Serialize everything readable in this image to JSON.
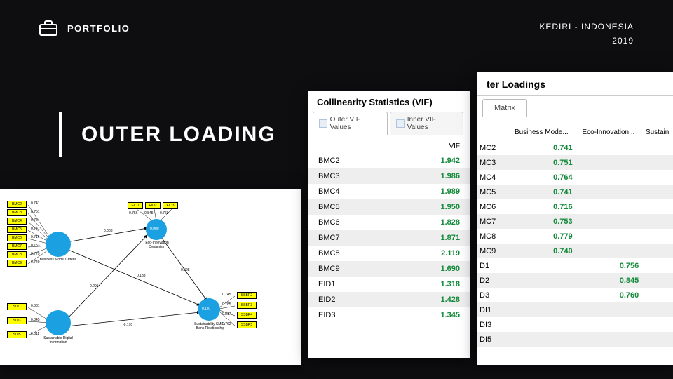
{
  "header": {
    "brand": "PORTFOLIO",
    "location": "KEDIRI - INDONESIA",
    "year": "2019"
  },
  "title": "OUTER LOADING",
  "colors": {
    "page_bg": "#0e0e11",
    "panel_bg": "#ffffff",
    "yellow": "#ffff00",
    "node": "#1ba1e2",
    "value_green": "#138a3a",
    "alt_row": "#eeeeee"
  },
  "diagram": {
    "bmc_boxes": [
      "BMC2",
      "BMC3",
      "BMC4",
      "BMC5",
      "BMC6",
      "BMC7",
      "BMC8",
      "BMC9"
    ],
    "bmc_loadings": [
      "0.741",
      "0.751",
      "0.764",
      "0.741",
      "0.716",
      "0.753",
      "0.779",
      "0.740"
    ],
    "eid_boxes": [
      "EID1",
      "EID2",
      "EID3"
    ],
    "eid_loadings": [
      "0.756",
      "0.845",
      "0.760"
    ],
    "sdi_boxes": [
      "SDI1",
      "SDI3",
      "SDI5"
    ],
    "sdi_loadings": [
      "0.831",
      "0.845",
      "0.811"
    ],
    "ssbr_boxes": [
      "SSBR2",
      "SSBR3",
      "SSBR4",
      "SSBR5"
    ],
    "ssbr_loadings": [
      "0.745",
      "0.785",
      "0.817",
      "0.762"
    ],
    "nodes": {
      "bmc": {
        "label": "Business Model Criteria",
        "value": ""
      },
      "eid": {
        "label": "Eco-Innovation Dynamism",
        "value": "0.000"
      },
      "sdi": {
        "label": "Sustainable Digital Information",
        "value": ""
      },
      "ssbr": {
        "label": "Sustainability SMEs-Bank Relationship",
        "value": "0.107"
      }
    },
    "path_coeffs": {
      "bmc_eid": "0.003",
      "bmc_ssbr": "0.133",
      "sdi_ssbr": "-0.170",
      "sdi_eid": "0.295",
      "eid_ssbr": "0.328"
    }
  },
  "vif": {
    "title": "Collinearity Statistics (VIF)",
    "tabs": [
      "Outer VIF Values",
      "Inner VIF Values"
    ],
    "col_header": "VIF",
    "rows": [
      {
        "k": "BMC2",
        "v": "1.942"
      },
      {
        "k": "BMC3",
        "v": "1.986"
      },
      {
        "k": "BMC4",
        "v": "1.989"
      },
      {
        "k": "BMC5",
        "v": "1.950"
      },
      {
        "k": "BMC6",
        "v": "1.828"
      },
      {
        "k": "BMC7",
        "v": "1.871"
      },
      {
        "k": "BMC8",
        "v": "2.119"
      },
      {
        "k": "BMC9",
        "v": "1.690"
      },
      {
        "k": "EID1",
        "v": "1.318"
      },
      {
        "k": "EID2",
        "v": "1.428"
      },
      {
        "k": "EID3",
        "v": "1.345"
      }
    ]
  },
  "loadings": {
    "title": "ter Loadings",
    "tab": "Matrix",
    "columns": [
      "",
      "Business Mode...",
      "Eco-Innovation...",
      "Sustain"
    ],
    "rows": [
      {
        "k": "MC2",
        "c1": "0.741",
        "c2": "",
        "c3": ""
      },
      {
        "k": "MC3",
        "c1": "0.751",
        "c2": "",
        "c3": ""
      },
      {
        "k": "MC4",
        "c1": "0.764",
        "c2": "",
        "c3": ""
      },
      {
        "k": "MC5",
        "c1": "0.741",
        "c2": "",
        "c3": ""
      },
      {
        "k": "MC6",
        "c1": "0.716",
        "c2": "",
        "c3": ""
      },
      {
        "k": "MC7",
        "c1": "0.753",
        "c2": "",
        "c3": ""
      },
      {
        "k": "MC8",
        "c1": "0.779",
        "c2": "",
        "c3": ""
      },
      {
        "k": "MC9",
        "c1": "0.740",
        "c2": "",
        "c3": ""
      },
      {
        "k": "D1",
        "c1": "",
        "c2": "0.756",
        "c3": ""
      },
      {
        "k": "D2",
        "c1": "",
        "c2": "0.845",
        "c3": ""
      },
      {
        "k": "D3",
        "c1": "",
        "c2": "0.760",
        "c3": ""
      },
      {
        "k": "DI1",
        "c1": "",
        "c2": "",
        "c3": ""
      },
      {
        "k": "DI3",
        "c1": "",
        "c2": "",
        "c3": ""
      },
      {
        "k": "DI5",
        "c1": "",
        "c2": "",
        "c3": ""
      }
    ]
  }
}
